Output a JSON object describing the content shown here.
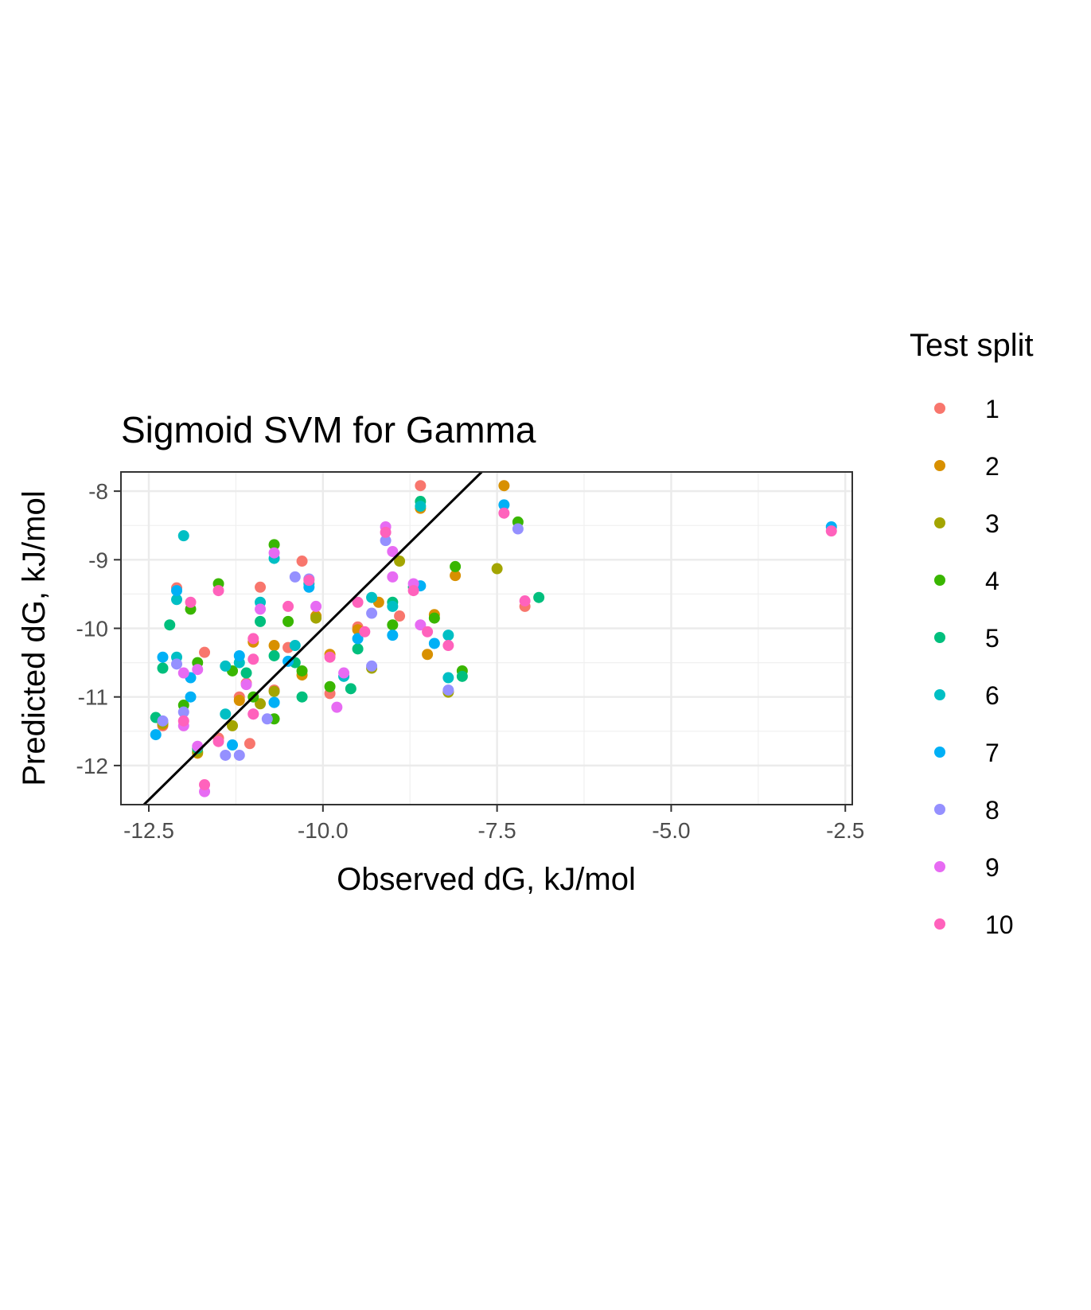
{
  "chart_data": {
    "type": "scatter",
    "title": "Sigmoid SVM for Gamma",
    "xlabel": "Observed dG, kJ/mol",
    "ylabel": "Predicted dG, kJ/mol",
    "xlim": [
      -12.9,
      -2.4
    ],
    "ylim": [
      -12.57,
      -7.72
    ],
    "x_ticks": [
      -12.5,
      -10.0,
      -7.5,
      -5.0,
      -2.5
    ],
    "x_tick_labels": [
      "-12.5",
      "-10.0",
      "-7.5",
      "-5.0",
      "-2.5"
    ],
    "y_ticks": [
      -12,
      -11,
      -10,
      -9,
      -8
    ],
    "y_tick_labels": [
      "-12",
      "-11",
      "-10",
      "-9",
      "-8"
    ],
    "grid": true,
    "reference_line": {
      "type": "identity",
      "color": "#000000"
    },
    "legend": {
      "title": "Test split",
      "placement": "right"
    },
    "series": [
      {
        "name": "1",
        "color": "#F8766D",
        "points": [
          [
            -8.6,
            -7.92
          ],
          [
            -10.3,
            -9.02
          ],
          [
            -10.9,
            -9.4
          ],
          [
            -12.1,
            -9.41
          ],
          [
            -11.7,
            -10.35
          ],
          [
            -11.1,
            -10.8
          ],
          [
            -11.05,
            -11.68
          ],
          [
            -9.9,
            -10.95
          ],
          [
            -8.9,
            -9.82
          ],
          [
            -10.5,
            -10.28
          ],
          [
            -11.5,
            -11.6
          ],
          [
            -12.3,
            -11.42
          ],
          [
            -8.2,
            -10.92
          ],
          [
            -7.1,
            -9.68
          ],
          [
            -9.5,
            -9.98
          ],
          [
            -11.2,
            -11.0
          ],
          [
            -10.7,
            -10.9
          ]
        ]
      },
      {
        "name": "2",
        "color": "#D89000",
        "points": [
          [
            -7.4,
            -7.92
          ],
          [
            -8.6,
            -8.25
          ],
          [
            -8.1,
            -9.23
          ],
          [
            -8.4,
            -9.8
          ],
          [
            -8.5,
            -10.38
          ],
          [
            -10.7,
            -10.25
          ],
          [
            -10.3,
            -10.68
          ],
          [
            -11.8,
            -11.82
          ],
          [
            -12.3,
            -11.4
          ],
          [
            -9.5,
            -10.02
          ],
          [
            -9.9,
            -10.38
          ],
          [
            -11.0,
            -10.2
          ],
          [
            -10.1,
            -9.82
          ],
          [
            -11.2,
            -11.05
          ],
          [
            -9.2,
            -9.62
          ]
        ]
      },
      {
        "name": "3",
        "color": "#A3A500",
        "points": [
          [
            -7.5,
            -9.13
          ],
          [
            -8.9,
            -9.02
          ],
          [
            -10.1,
            -9.85
          ],
          [
            -10.7,
            -10.92
          ],
          [
            -11.8,
            -11.8
          ],
          [
            -11.3,
            -11.42
          ],
          [
            -9.3,
            -10.58
          ],
          [
            -8.2,
            -10.93
          ],
          [
            -12.3,
            -11.38
          ],
          [
            -10.9,
            -11.1
          ]
        ]
      },
      {
        "name": "4",
        "color": "#39B600",
        "points": [
          [
            -10.7,
            -8.78
          ],
          [
            -11.5,
            -9.35
          ],
          [
            -11.9,
            -9.72
          ],
          [
            -10.5,
            -9.9
          ],
          [
            -8.1,
            -9.1
          ],
          [
            -8.4,
            -9.85
          ],
          [
            -7.2,
            -8.45
          ],
          [
            -11.3,
            -10.62
          ],
          [
            -9.9,
            -10.85
          ],
          [
            -10.3,
            -10.62
          ],
          [
            -12.0,
            -11.12
          ],
          [
            -11.8,
            -10.5
          ],
          [
            -10.7,
            -11.32
          ],
          [
            -9.0,
            -9.95
          ],
          [
            -8.0,
            -10.62
          ],
          [
            -11.0,
            -11.0
          ]
        ]
      },
      {
        "name": "5",
        "color": "#00BF7D",
        "points": [
          [
            -12.4,
            -11.3
          ],
          [
            -12.2,
            -9.95
          ],
          [
            -12.3,
            -10.58
          ],
          [
            -10.9,
            -9.9
          ],
          [
            -10.3,
            -11.0
          ],
          [
            -9.5,
            -10.3
          ],
          [
            -9.6,
            -10.88
          ],
          [
            -8.6,
            -8.15
          ],
          [
            -6.9,
            -9.55
          ],
          [
            -8.0,
            -10.7
          ],
          [
            -11.1,
            -10.65
          ],
          [
            -10.4,
            -10.5
          ],
          [
            -8.7,
            -9.4
          ],
          [
            -11.8,
            -11.75
          ],
          [
            -10.7,
            -10.4
          ],
          [
            -9.0,
            -9.62
          ]
        ]
      },
      {
        "name": "6",
        "color": "#00BFC4",
        "points": [
          [
            -12.0,
            -8.65
          ],
          [
            -10.7,
            -8.98
          ],
          [
            -12.1,
            -9.58
          ],
          [
            -10.9,
            -9.62
          ],
          [
            -9.0,
            -9.68
          ],
          [
            -9.3,
            -9.55
          ],
          [
            -11.4,
            -10.55
          ],
          [
            -12.1,
            -10.42
          ],
          [
            -11.4,
            -11.25
          ],
          [
            -8.2,
            -10.72
          ],
          [
            -8.2,
            -10.1
          ],
          [
            -8.6,
            -8.22
          ],
          [
            -10.4,
            -10.25
          ],
          [
            -10.2,
            -9.35
          ],
          [
            -9.7,
            -10.7
          ],
          [
            -11.2,
            -10.5
          ],
          [
            -10.7,
            -11.08
          ]
        ]
      },
      {
        "name": "7",
        "color": "#00B0F6",
        "points": [
          [
            -7.4,
            -8.2
          ],
          [
            -2.7,
            -8.52
          ],
          [
            -12.1,
            -9.45
          ],
          [
            -10.2,
            -9.4
          ],
          [
            -9.0,
            -10.1
          ],
          [
            -11.9,
            -11.0
          ],
          [
            -12.4,
            -11.55
          ],
          [
            -11.3,
            -11.7
          ],
          [
            -12.3,
            -10.42
          ],
          [
            -11.2,
            -10.4
          ],
          [
            -10.7,
            -11.08
          ],
          [
            -8.4,
            -10.22
          ],
          [
            -8.6,
            -9.38
          ],
          [
            -9.5,
            -10.15
          ],
          [
            -11.9,
            -10.72
          ],
          [
            -10.5,
            -10.48
          ]
        ]
      },
      {
        "name": "8",
        "color": "#9590FF",
        "points": [
          [
            -7.2,
            -8.55
          ],
          [
            -10.4,
            -9.25
          ],
          [
            -9.1,
            -8.72
          ],
          [
            -11.2,
            -11.85
          ],
          [
            -11.4,
            -11.85
          ],
          [
            -12.0,
            -11.22
          ],
          [
            -12.1,
            -10.52
          ],
          [
            -9.3,
            -10.55
          ],
          [
            -8.2,
            -10.9
          ],
          [
            -10.8,
            -11.32
          ],
          [
            -9.3,
            -9.78
          ],
          [
            -12.3,
            -11.35
          ],
          [
            -10.2,
            -9.28
          ]
        ]
      },
      {
        "name": "9",
        "color": "#E76BF3",
        "points": [
          [
            -9.1,
            -8.52
          ],
          [
            -9.0,
            -8.88
          ],
          [
            -9.0,
            -9.25
          ],
          [
            -10.7,
            -8.9
          ],
          [
            -10.9,
            -9.72
          ],
          [
            -10.1,
            -9.68
          ],
          [
            -11.8,
            -11.72
          ],
          [
            -11.1,
            -10.82
          ],
          [
            -9.8,
            -11.15
          ],
          [
            -12.0,
            -11.42
          ],
          [
            -8.7,
            -9.35
          ],
          [
            -8.6,
            -9.95
          ],
          [
            -11.0,
            -11.25
          ],
          [
            -9.7,
            -10.65
          ],
          [
            -11.8,
            -10.6
          ],
          [
            -12.0,
            -10.65
          ],
          [
            -11.7,
            -12.38
          ]
        ]
      },
      {
        "name": "10",
        "color": "#FF62BC",
        "points": [
          [
            -2.7,
            -8.58
          ],
          [
            -9.1,
            -8.6
          ],
          [
            -7.4,
            -8.32
          ],
          [
            -7.1,
            -9.6
          ],
          [
            -11.9,
            -9.62
          ],
          [
            -11.5,
            -9.45
          ],
          [
            -10.2,
            -9.3
          ],
          [
            -10.5,
            -9.68
          ],
          [
            -8.7,
            -9.45
          ],
          [
            -9.4,
            -10.05
          ],
          [
            -9.5,
            -9.62
          ],
          [
            -8.2,
            -10.25
          ],
          [
            -8.5,
            -10.05
          ],
          [
            -11.0,
            -10.15
          ],
          [
            -11.0,
            -11.25
          ],
          [
            -11.7,
            -12.28
          ],
          [
            -12.0,
            -11.35
          ],
          [
            -9.9,
            -10.42
          ],
          [
            -11.0,
            -10.45
          ],
          [
            -11.5,
            -11.65
          ]
        ]
      }
    ]
  }
}
